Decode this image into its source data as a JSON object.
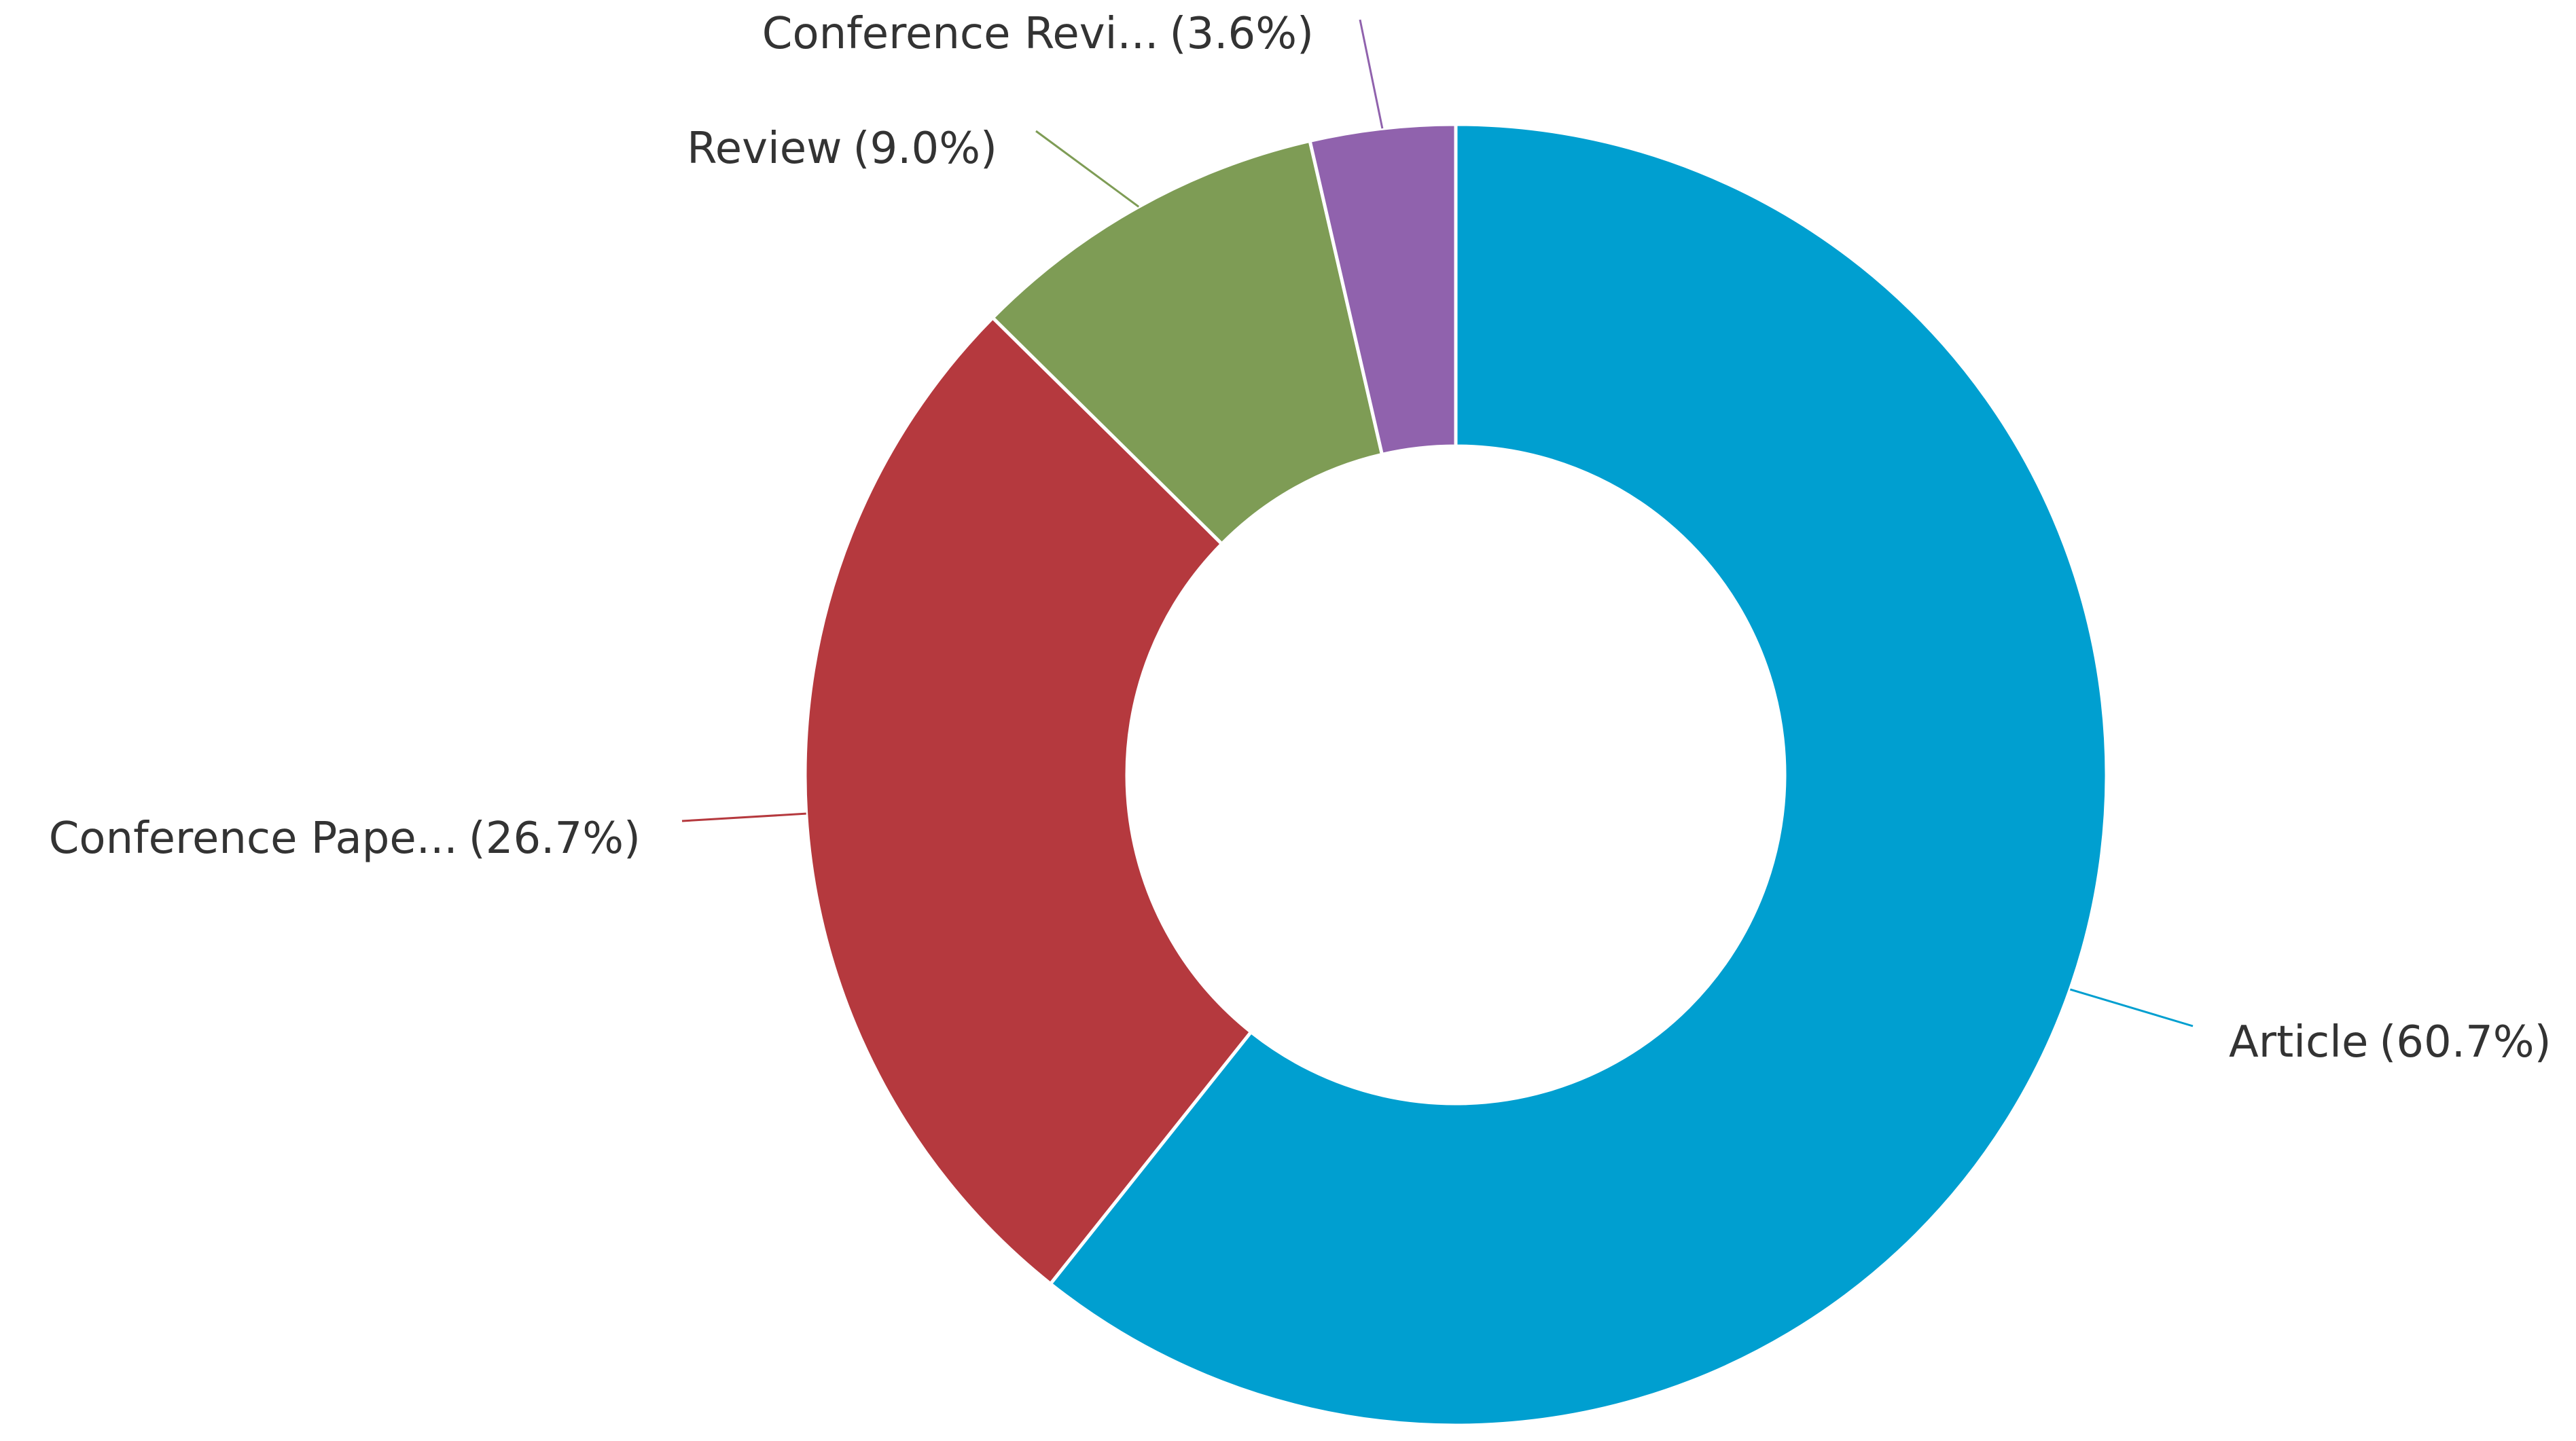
{
  "chart_data": {
    "type": "donut",
    "categories": [
      "Article",
      "Conference Pape...",
      "Review",
      "Conference Revi..."
    ],
    "values": [
      60.7,
      26.7,
      9.0,
      3.6
    ],
    "value_labels": [
      "(60.7%)",
      "(26.7%)",
      "(9.0%)",
      "(3.6%)"
    ],
    "colors": [
      "#009fd0",
      "#b5393e",
      "#7e9c55",
      "#9062ad"
    ]
  }
}
